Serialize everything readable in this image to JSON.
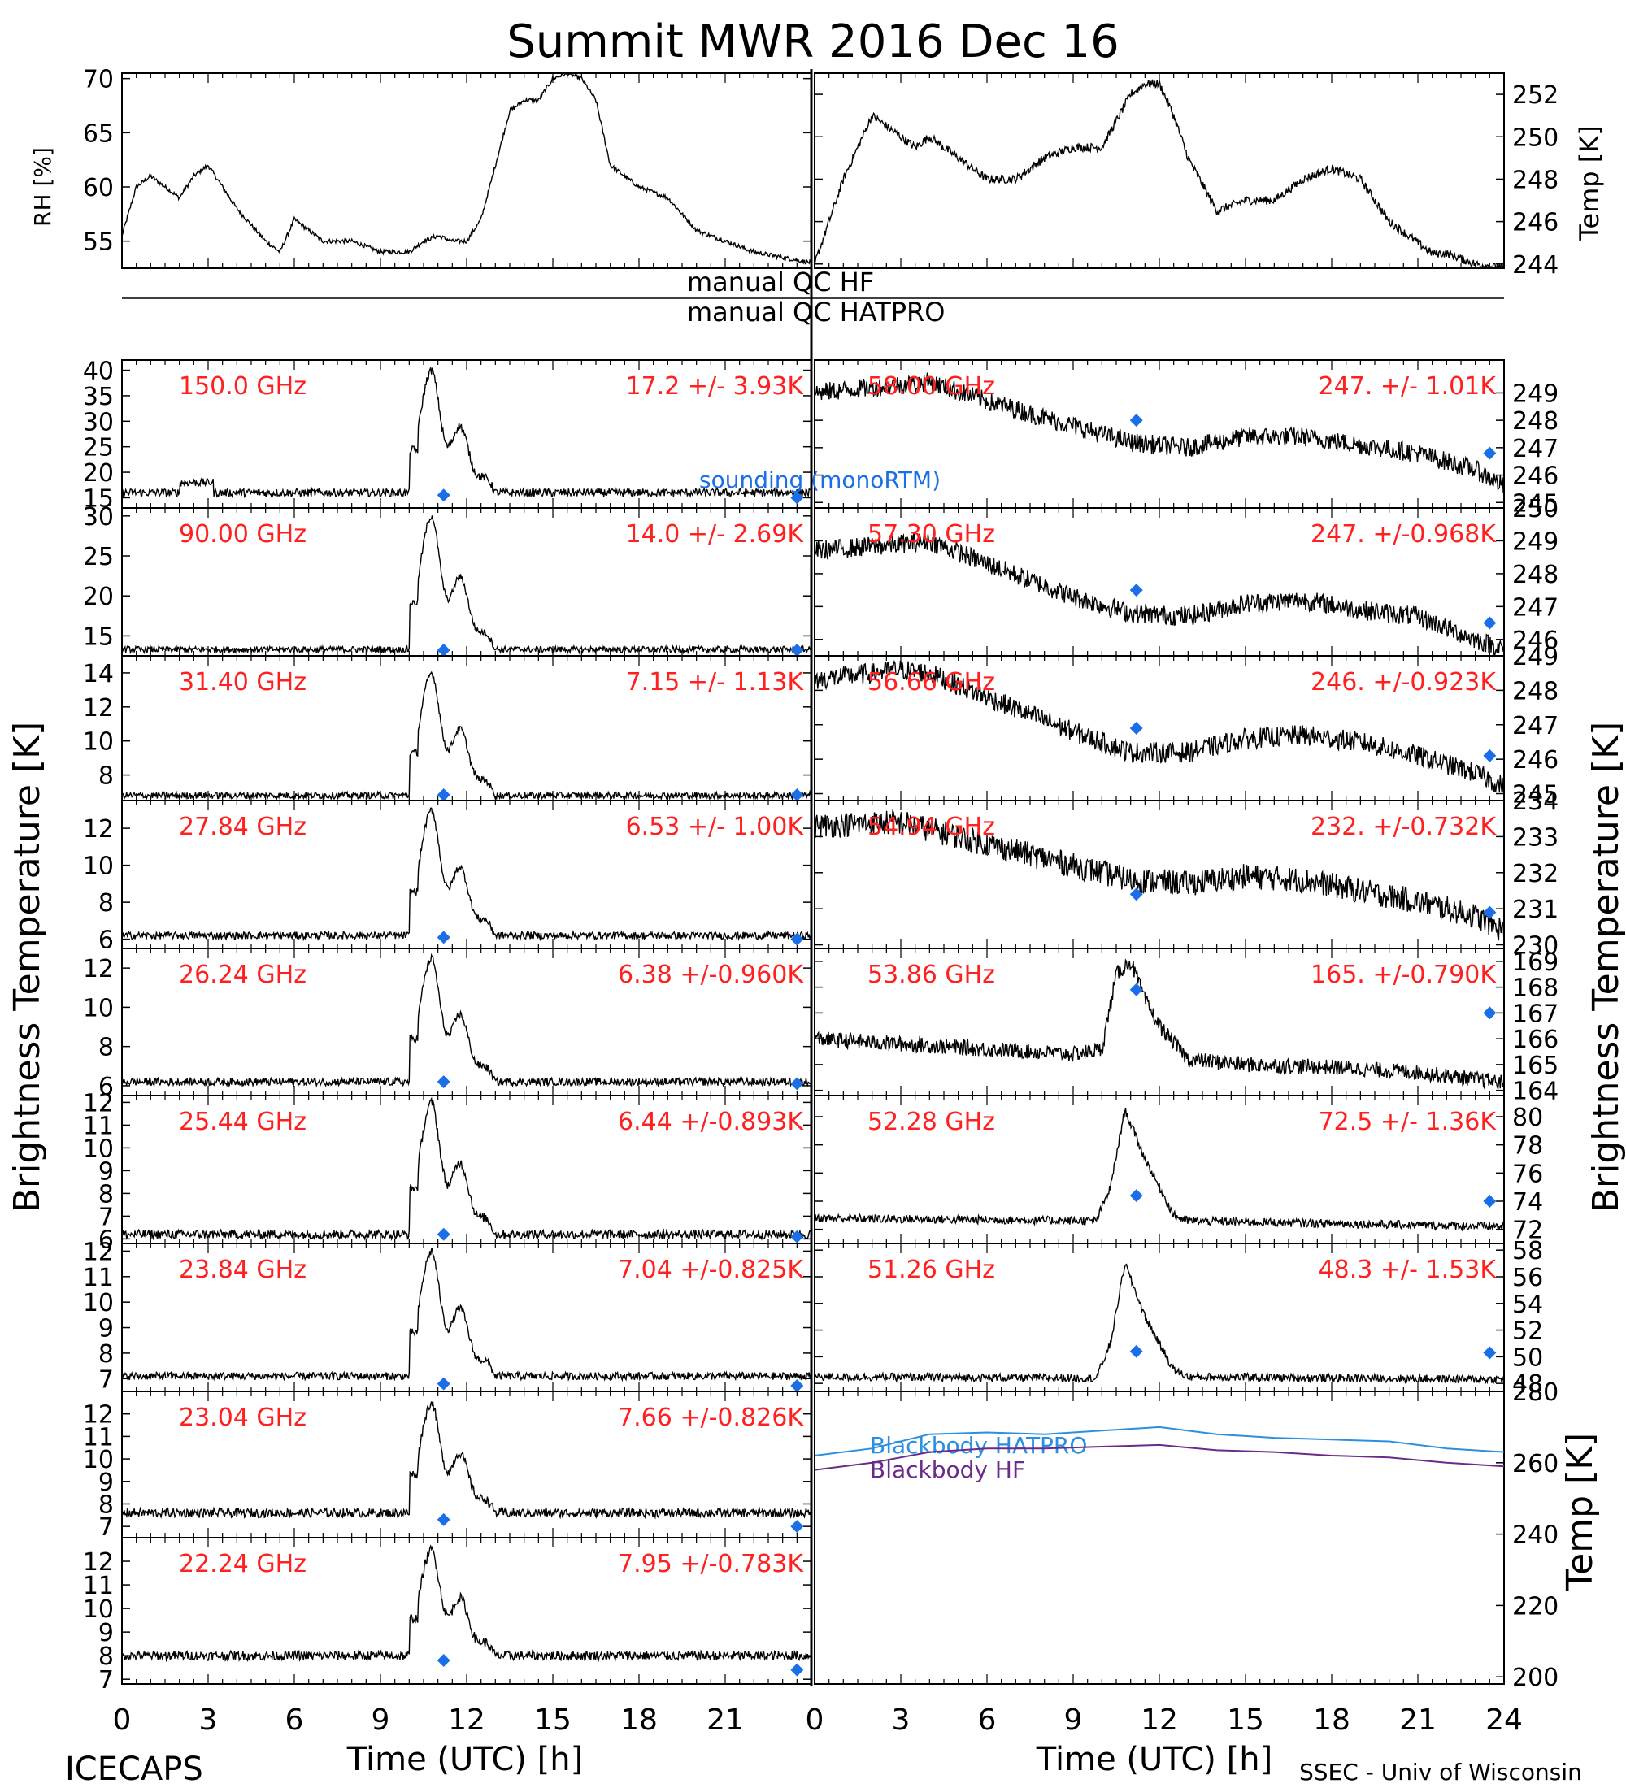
{
  "title": "Summit MWR 2016 Dec 16",
  "footer": {
    "left": "ICECAPS",
    "right": "SSEC - Univ of Wisconsin"
  },
  "labels": {
    "left_axis": "Brightness Temperature [K]",
    "right_axis": "Brightness Temperature [K]",
    "x_axis": "Time (UTC) [h]",
    "rh_axis": "RH [%]",
    "temp_axis": "Temp [K]",
    "bb_axis": "Temp [K]",
    "qc_hf": "manual QC HF",
    "qc_hatpro": "manual QC HATPRO",
    "sounding": "sounding (monoRTM)"
  },
  "colors": {
    "trace": "#000000",
    "channel_label": "#ff2020",
    "marker": "#1a6fe8",
    "bb_hatpro": "#2a8fe0",
    "bb_hf": "#6a2a8a"
  },
  "chart_data": [
    {
      "id": "met-rh",
      "type": "line",
      "ylabel": "RH [%]",
      "xlim": [
        0,
        24
      ],
      "ylim": [
        52.5,
        70.5
      ],
      "yticks": [
        55,
        60,
        65,
        70
      ],
      "xticks_visible": false,
      "x": [
        0,
        0.5,
        1,
        2,
        2.5,
        3,
        4,
        5,
        5.5,
        6,
        7,
        8,
        9,
        10,
        10.5,
        11,
        11.5,
        12,
        12.5,
        13,
        13.5,
        14,
        14.5,
        15,
        15.5,
        16,
        16.5,
        17,
        17.5,
        18,
        19,
        20,
        21,
        22,
        23,
        24
      ],
      "values": [
        55.5,
        60,
        61,
        59,
        61,
        62,
        58,
        55,
        54,
        57,
        55,
        55,
        54,
        54,
        55,
        55.5,
        55,
        55,
        57,
        62,
        67,
        68,
        68,
        70,
        70.5,
        70,
        68,
        62,
        61,
        60,
        59,
        56,
        55,
        54,
        53.5,
        53
      ]
    },
    {
      "id": "met-temp",
      "type": "line",
      "ylabel": "Temp [K]",
      "xlim": [
        0,
        24
      ],
      "ylim": [
        243.8,
        253
      ],
      "yticks": [
        244,
        246,
        248,
        250,
        252
      ],
      "xticks_visible": false,
      "x": [
        0,
        1,
        2,
        3,
        3.5,
        4,
        5,
        6,
        7,
        8,
        9,
        10,
        11,
        11.5,
        12,
        12.5,
        13,
        14,
        15,
        16,
        17,
        18,
        19,
        20,
        21,
        21.5,
        22,
        23,
        24
      ],
      "values": [
        244,
        248,
        251,
        250,
        249.5,
        250,
        249,
        248,
        248,
        249,
        249.5,
        249.5,
        252,
        252.5,
        252.5,
        251,
        249,
        246.5,
        247,
        247,
        248,
        248.5,
        248,
        246,
        245,
        244.5,
        244.5,
        244,
        243.8
      ]
    },
    {
      "id": "ch-150",
      "type": "line",
      "label": "150.0 GHz",
      "stats": "17.2 +/- 3.93K",
      "ylim": [
        13,
        42
      ],
      "yticks": [
        15,
        20,
        25,
        30,
        35,
        40
      ],
      "baseline": 16,
      "peak": 40,
      "sounding": [
        [
          11.2,
          15.5
        ],
        [
          23.5,
          15
        ]
      ],
      "noise": 0.8
    },
    {
      "id": "ch-90",
      "type": "line",
      "label": "90.00 GHz",
      "stats": "14.0 +/- 2.69K",
      "ylim": [
        12.5,
        31
      ],
      "yticks": [
        15,
        20,
        25,
        30
      ],
      "baseline": 13.3,
      "peak": 30,
      "sounding": [
        [
          11.2,
          12.8
        ],
        [
          23.5,
          12.8
        ]
      ],
      "noise": 0.4
    },
    {
      "id": "ch-31.40",
      "type": "line",
      "label": "31.40 GHz",
      "stats": "7.15 +/- 1.13K",
      "ylim": [
        6.5,
        15
      ],
      "yticks": [
        8,
        10,
        12,
        14
      ],
      "baseline": 6.8,
      "peak": 14,
      "sounding": [
        [
          11.2,
          6.8
        ],
        [
          23.5,
          6.8
        ]
      ],
      "noise": 0.2
    },
    {
      "id": "ch-27.84",
      "type": "line",
      "label": "27.84 GHz",
      "stats": "6.53 +/- 1.00K",
      "ylim": [
        5.5,
        13.5
      ],
      "yticks": [
        6,
        8,
        10,
        12
      ],
      "baseline": 6.2,
      "peak": 13,
      "sounding": [
        [
          11.2,
          6.1
        ],
        [
          23.5,
          6
        ]
      ],
      "noise": 0.2
    },
    {
      "id": "ch-26.24",
      "type": "line",
      "label": "26.24 GHz",
      "stats": "6.38 +/-0.960K",
      "ylim": [
        5.5,
        13
      ],
      "yticks": [
        6,
        8,
        10,
        12
      ],
      "baseline": 6.2,
      "peak": 12.5,
      "sounding": [
        [
          11.2,
          6.2
        ],
        [
          23.5,
          6.1
        ]
      ],
      "noise": 0.2
    },
    {
      "id": "ch-25.44",
      "type": "line",
      "label": "25.44 GHz",
      "stats": "6.44 +/-0.893K",
      "ylim": [
        5.8,
        12.3
      ],
      "yticks": [
        6,
        7,
        8,
        9,
        10,
        11,
        12
      ],
      "baseline": 6.2,
      "peak": 12,
      "sounding": [
        [
          11.2,
          6.2
        ],
        [
          23.5,
          6.1
        ]
      ],
      "noise": 0.2
    },
    {
      "id": "ch-23.84",
      "type": "line",
      "label": "23.84 GHz",
      "stats": "7.04 +/-0.825K",
      "ylim": [
        6.5,
        12.3
      ],
      "yticks": [
        7,
        8,
        9,
        10,
        11,
        12
      ],
      "baseline": 7.1,
      "peak": 12,
      "sounding": [
        [
          11.2,
          6.8
        ],
        [
          23.5,
          6.7
        ]
      ],
      "noise": 0.15
    },
    {
      "id": "ch-23.04",
      "type": "line",
      "label": "23.04 GHz",
      "stats": "7.66 +/-0.826K",
      "ylim": [
        6.5,
        13
      ],
      "yticks": [
        7,
        8,
        9,
        10,
        11,
        12
      ],
      "baseline": 7.6,
      "peak": 12.5,
      "sounding": [
        [
          11.2,
          7.3
        ],
        [
          23.5,
          7
        ]
      ],
      "noise": 0.2
    },
    {
      "id": "ch-22.24",
      "type": "line",
      "label": "22.24 GHz",
      "stats": "7.95 +/-0.783K",
      "ylim": [
        6.8,
        13
      ],
      "yticks": [
        7,
        8,
        9,
        10,
        11,
        12
      ],
      "baseline": 8,
      "peak": 12.5,
      "sounding": [
        [
          11.2,
          7.8
        ],
        [
          23.5,
          7.4
        ]
      ],
      "noise": 0.2
    },
    {
      "id": "ch-58.00",
      "type": "line",
      "label": "58.00 GHz",
      "stats": "247. +/- 1.01K",
      "ylim": [
        244.8,
        250.2
      ],
      "yticks": [
        245,
        246,
        247,
        248,
        249
      ],
      "profile": [
        [
          0,
          249.0
        ],
        [
          3,
          249.3
        ],
        [
          4,
          249.4
        ],
        [
          6,
          248.7
        ],
        [
          9,
          247.8
        ],
        [
          11,
          247.2
        ],
        [
          13,
          247
        ],
        [
          15,
          247.4
        ],
        [
          17,
          247.4
        ],
        [
          19,
          247.1
        ],
        [
          21,
          246.8
        ],
        [
          23,
          246.2
        ],
        [
          24,
          245.6
        ]
      ],
      "sounding": [
        [
          11.2,
          248
        ],
        [
          23.5,
          246.8
        ]
      ],
      "noise": 0.35
    },
    {
      "id": "ch-57.30",
      "type": "line",
      "label": "57.30 GHz",
      "stats": "247. +/-0.968K",
      "ylim": [
        245.5,
        250
      ],
      "yticks": [
        246,
        247,
        248,
        249,
        250
      ],
      "profile": [
        [
          0,
          248.7
        ],
        [
          3,
          248.9
        ],
        [
          4,
          249.0
        ],
        [
          6,
          248.3
        ],
        [
          9,
          247.3
        ],
        [
          11,
          246.8
        ],
        [
          13,
          246.7
        ],
        [
          15,
          247.1
        ],
        [
          17,
          247.2
        ],
        [
          19,
          246.9
        ],
        [
          21,
          246.7
        ],
        [
          23,
          246.0
        ],
        [
          24,
          245.7
        ]
      ],
      "sounding": [
        [
          11.2,
          247.5
        ],
        [
          23.5,
          246.5
        ]
      ],
      "noise": 0.3
    },
    {
      "id": "ch-56.66",
      "type": "line",
      "label": "56.66 GHz",
      "stats": "246. +/-0.923K",
      "ylim": [
        244.8,
        249
      ],
      "yticks": [
        245,
        246,
        247,
        248,
        249
      ],
      "profile": [
        [
          0,
          248.3
        ],
        [
          3,
          248.6
        ],
        [
          4,
          248.5
        ],
        [
          6,
          247.8
        ],
        [
          9,
          246.8
        ],
        [
          11,
          246.2
        ],
        [
          13,
          246.2
        ],
        [
          15,
          246.6
        ],
        [
          17,
          246.7
        ],
        [
          19,
          246.5
        ],
        [
          21,
          246.1
        ],
        [
          23,
          245.6
        ],
        [
          24,
          245.2
        ]
      ],
      "sounding": [
        [
          11.2,
          246.9
        ],
        [
          23.5,
          246.1
        ]
      ],
      "noise": 0.3
    },
    {
      "id": "ch-54.94",
      "type": "line",
      "label": "54.94 GHz",
      "stats": "232. +/-0.732K",
      "ylim": [
        229.9,
        234
      ],
      "yticks": [
        230,
        231,
        232,
        233,
        234
      ],
      "profile": [
        [
          0,
          233.3
        ],
        [
          3,
          233.4
        ],
        [
          6,
          232.8
        ],
        [
          9,
          232.2
        ],
        [
          11,
          231.8
        ],
        [
          13,
          231.7
        ],
        [
          15,
          231.9
        ],
        [
          17,
          231.8
        ],
        [
          19,
          231.5
        ],
        [
          21,
          231.2
        ],
        [
          23,
          230.8
        ],
        [
          24,
          230.4
        ]
      ],
      "sounding": [
        [
          11.2,
          231.4
        ],
        [
          23.5,
          230.9
        ]
      ],
      "noise": 0.35
    },
    {
      "id": "ch-53.86",
      "type": "line",
      "label": "53.86 GHz",
      "stats": "165. +/-0.790K",
      "ylim": [
        163.8,
        169.5
      ],
      "yticks": [
        164,
        165,
        166,
        167,
        168,
        169
      ],
      "profile": [
        [
          0,
          166
        ],
        [
          3,
          165.8
        ],
        [
          6,
          165.6
        ],
        [
          9,
          165.4
        ],
        [
          10,
          165.6
        ],
        [
          10.5,
          168.5
        ],
        [
          11,
          169.0
        ],
        [
          11.5,
          167.5
        ],
        [
          12,
          166.5
        ],
        [
          13,
          165.2
        ],
        [
          15,
          165
        ],
        [
          18,
          164.9
        ],
        [
          21,
          164.7
        ],
        [
          24,
          164.3
        ]
      ],
      "sounding": [
        [
          11.2,
          167.9
        ],
        [
          23.5,
          167
        ]
      ],
      "noise": 0.3
    },
    {
      "id": "ch-52.28",
      "type": "line",
      "label": "52.28 GHz",
      "stats": "72.5 +/- 1.36K",
      "ylim": [
        71,
        81.5
      ],
      "yticks": [
        72,
        74,
        76,
        78,
        80
      ],
      "profile": [
        [
          0,
          72.8
        ],
        [
          9.8,
          72.6
        ],
        [
          10.3,
          75
        ],
        [
          10.8,
          80.5
        ],
        [
          11.5,
          77
        ],
        [
          12,
          75
        ],
        [
          12.5,
          73
        ],
        [
          13,
          72.6
        ],
        [
          24,
          72.2
        ]
      ],
      "sounding": [
        [
          11.2,
          74.4
        ],
        [
          23.5,
          74
        ]
      ],
      "noise": 0.3
    },
    {
      "id": "ch-51.26",
      "type": "line",
      "label": "51.26 GHz",
      "stats": "48.3 +/- 1.53K",
      "ylim": [
        47.4,
        58.5
      ],
      "yticks": [
        48,
        50,
        52,
        54,
        56,
        58
      ],
      "profile": [
        [
          0,
          48.5
        ],
        [
          9.8,
          48.4
        ],
        [
          10.3,
          51
        ],
        [
          10.8,
          57
        ],
        [
          11.5,
          53
        ],
        [
          12,
          51
        ],
        [
          12.5,
          49
        ],
        [
          13,
          48.5
        ],
        [
          24,
          48.3
        ]
      ],
      "sounding": [
        [
          11.2,
          50.4
        ],
        [
          23.5,
          50.3
        ]
      ],
      "noise": 0.3
    },
    {
      "id": "blackbody",
      "type": "line",
      "ylabel": "Temp [K]",
      "xlim": [
        0,
        24
      ],
      "ylim": [
        198,
        280
      ],
      "yticks": [
        200,
        220,
        240,
        260,
        280
      ],
      "series": [
        {
          "name": "Blackbody HATPRO",
          "x": [
            0,
            2,
            4,
            6,
            8,
            10,
            12,
            14,
            16,
            18,
            20,
            22,
            24
          ],
          "values": [
            262,
            264,
            268,
            268.5,
            268,
            269,
            270,
            268,
            267,
            266.5,
            266,
            264,
            263
          ]
        },
        {
          "name": "Blackbody HF",
          "x": [
            0,
            2,
            4,
            6,
            8,
            10,
            12,
            14,
            16,
            18,
            20,
            22,
            24
          ],
          "values": [
            258,
            260,
            263,
            264,
            264,
            264.5,
            265,
            263.5,
            263,
            262,
            261.5,
            260,
            259
          ]
        }
      ]
    }
  ],
  "x_ticks": [
    "0",
    "3",
    "6",
    "9",
    "12",
    "15",
    "18",
    "21",
    "24"
  ]
}
